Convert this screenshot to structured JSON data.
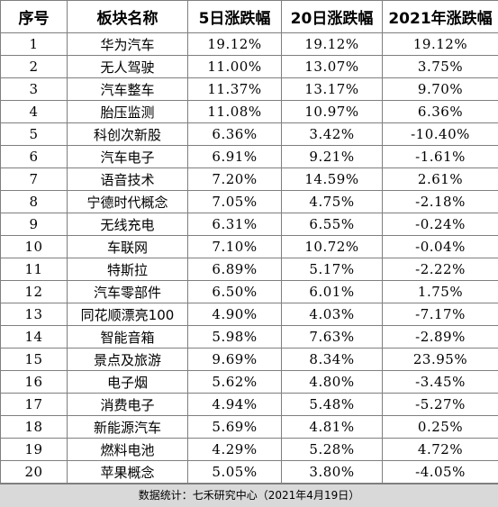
{
  "table": {
    "headers": [
      "序号",
      "板块名称",
      "5日涨跌幅",
      "20日涨跌幅",
      "2021年涨跌幅"
    ],
    "rows": [
      [
        "1",
        "华为汽车",
        "19.12%",
        "19.12%",
        "19.12%"
      ],
      [
        "2",
        "无人驾驶",
        "11.00%",
        "13.07%",
        "3.75%"
      ],
      [
        "3",
        "汽车整车",
        "11.37%",
        "13.17%",
        "9.70%"
      ],
      [
        "4",
        "胎压监测",
        "11.08%",
        "10.97%",
        "6.36%"
      ],
      [
        "5",
        "科创次新股",
        "6.36%",
        "3.42%",
        "-10.40%"
      ],
      [
        "6",
        "汽车电子",
        "6.91%",
        "9.21%",
        "-1.61%"
      ],
      [
        "7",
        "语音技术",
        "7.20%",
        "14.59%",
        "2.61%"
      ],
      [
        "8",
        "宁德时代概念",
        "7.05%",
        "4.75%",
        "-2.18%"
      ],
      [
        "9",
        "无线充电",
        "6.31%",
        "6.55%",
        "-0.24%"
      ],
      [
        "10",
        "车联网",
        "7.10%",
        "10.72%",
        "-0.04%"
      ],
      [
        "11",
        "特斯拉",
        "6.89%",
        "5.17%",
        "-2.22%"
      ],
      [
        "12",
        "汽车零部件",
        "6.50%",
        "6.01%",
        "1.75%"
      ],
      [
        "13",
        "同花顺漂亮100",
        "4.90%",
        "4.03%",
        "-7.17%"
      ],
      [
        "14",
        "智能音箱",
        "5.98%",
        "7.63%",
        "-2.89%"
      ],
      [
        "15",
        "景点及旅游",
        "9.69%",
        "8.34%",
        "23.95%"
      ],
      [
        "16",
        "电子烟",
        "5.62%",
        "4.80%",
        "-3.45%"
      ],
      [
        "17",
        "消费电子",
        "4.94%",
        "5.48%",
        "-5.27%"
      ],
      [
        "18",
        "新能源汽车",
        "5.69%",
        "4.81%",
        "0.25%"
      ],
      [
        "19",
        "燃料电池",
        "4.29%",
        "5.28%",
        "4.72%"
      ],
      [
        "20",
        "苹果概念",
        "5.05%",
        "3.80%",
        "-4.05%"
      ]
    ]
  },
  "footer": {
    "source": "数据统计：七禾研究中心（2021年4月19日）"
  }
}
